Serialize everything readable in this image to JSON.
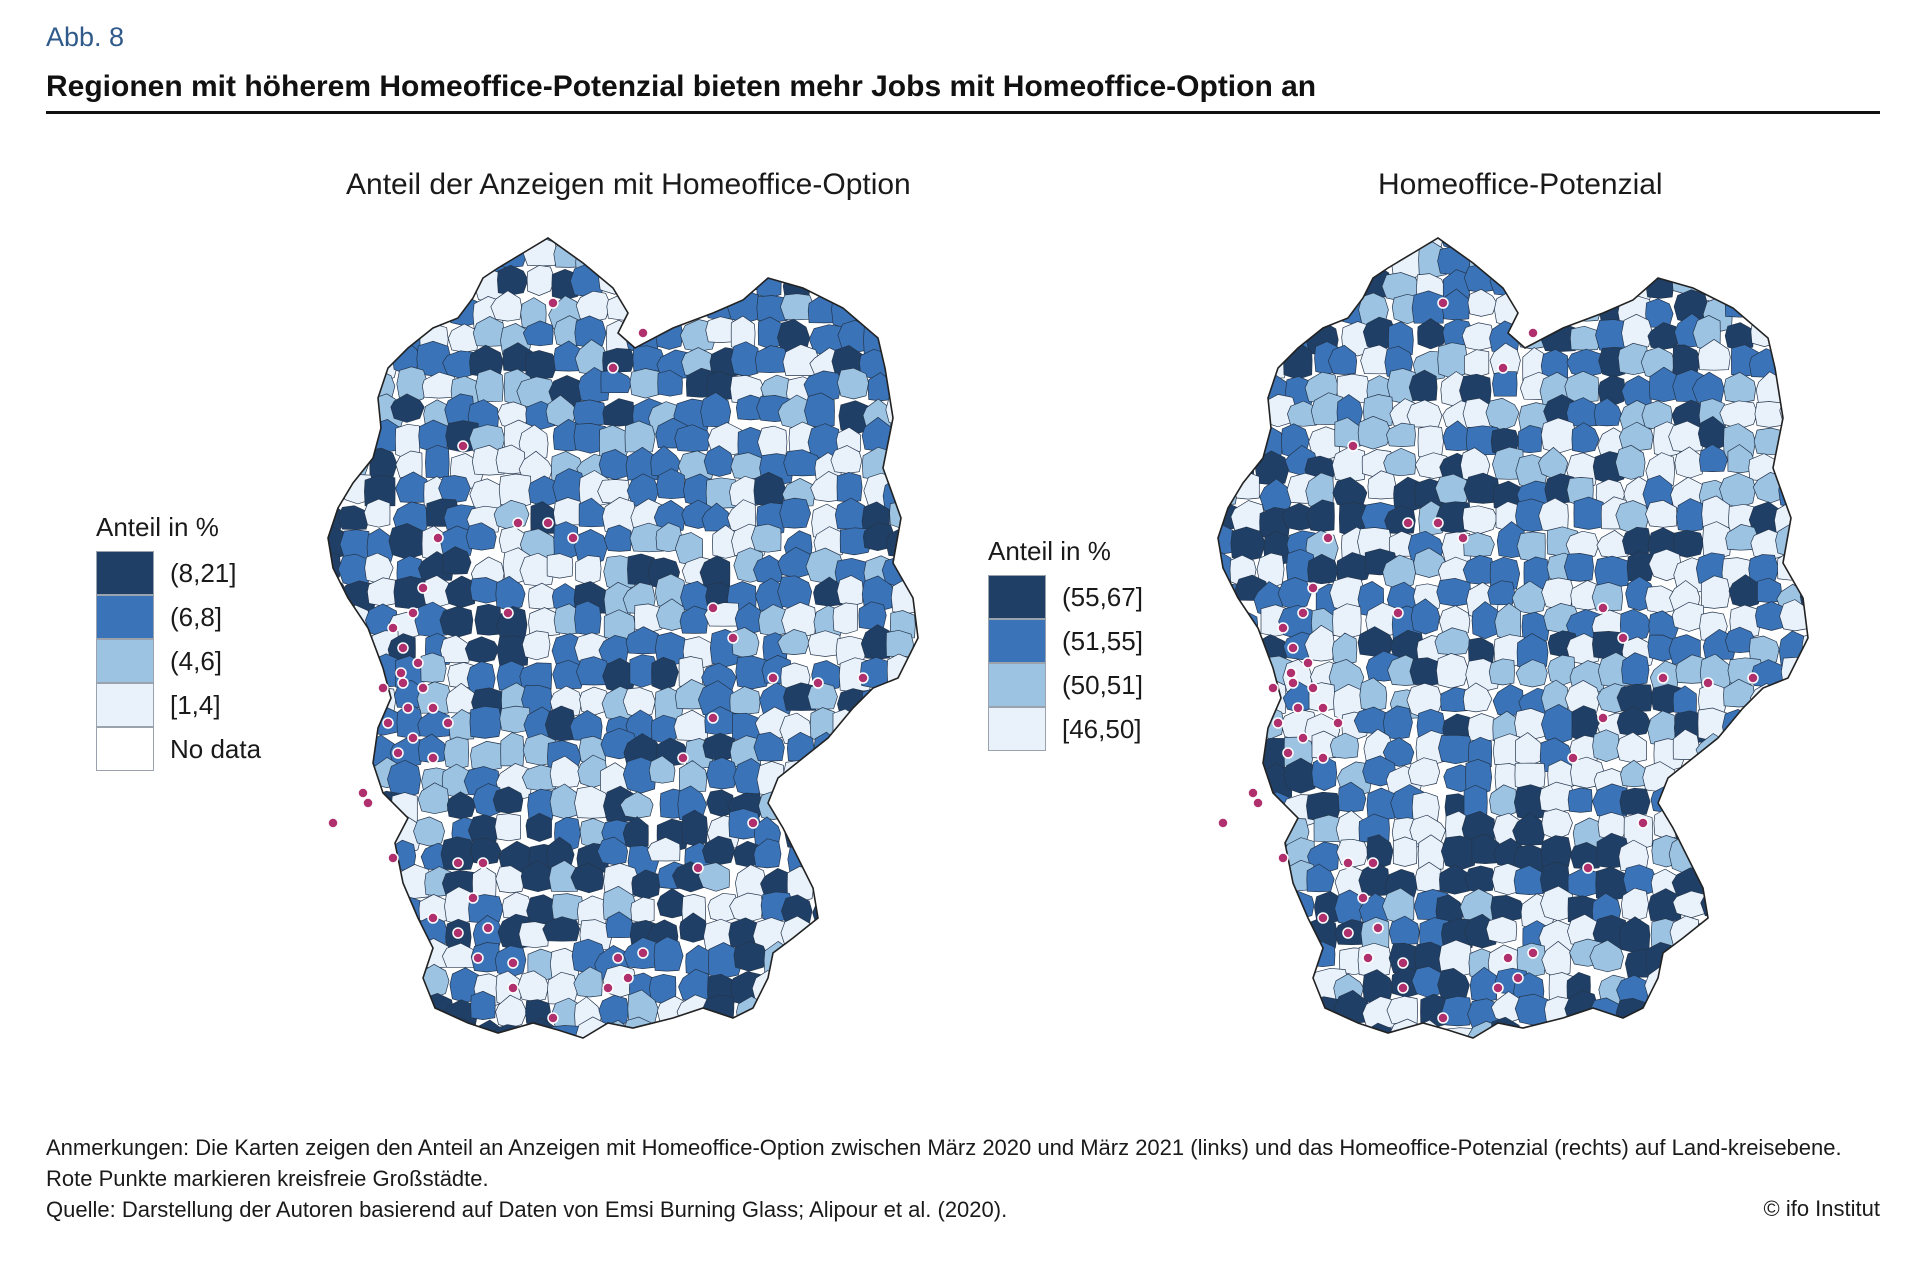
{
  "figure": {
    "label": "Abb. 8",
    "title": "Regionen mit höherem Homeoffice-Potenzial bieten mehr Jobs mit Homeoffice-Option an"
  },
  "map_left": {
    "title": "Anteil der Anzeigen mit Homeoffice-Option",
    "legend": {
      "title": "Anteil in %",
      "items": [
        {
          "label": "(8,21]",
          "color": "#1f3f66"
        },
        {
          "label": "(6,8]",
          "color": "#3a73b8"
        },
        {
          "label": "(4,6]",
          "color": "#9dc3e2"
        },
        {
          "label": "[1,4]",
          "color": "#e9f1fb"
        },
        {
          "label": "No data",
          "color": "#ffffff"
        }
      ]
    }
  },
  "map_right": {
    "title": "Homeoffice-Potenzial",
    "legend": {
      "title": "Anteil in %",
      "items": [
        {
          "label": "(55,67]",
          "color": "#1f3f66"
        },
        {
          "label": "(51,55]",
          "color": "#3a73b8"
        },
        {
          "label": "(50,51]",
          "color": "#9dc3e2"
        },
        {
          "label": "[46,50]",
          "color": "#e9f1fb"
        }
      ]
    }
  },
  "city_dot_color": "#b0306e",
  "notes": {
    "line1": "Anmerkungen: Die Karten zeigen den Anteil an Anzeigen mit Homeoffice-Option zwischen März 2020 und März 2021 (links) und das Homeoffice-Potenzial (rechts) auf Land-kreisebene. Rote Punkte markieren kreisfreie Großstädte.",
    "line2": "Quelle: Darstellung der Autoren basierend auf Daten von Emsi Burning Glass; Alipour et al. (2020).",
    "copyright": "© ifo Institut"
  }
}
